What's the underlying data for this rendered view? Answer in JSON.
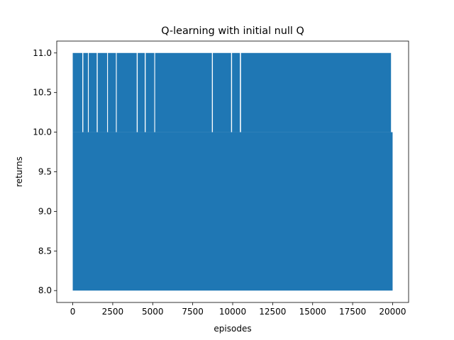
{
  "chart_data": {
    "type": "line",
    "title": "Q-learning with initial null Q",
    "xlabel": "episodes",
    "ylabel": "returns",
    "xlim": [
      -1000,
      21000
    ],
    "ylim": [
      7.85,
      11.15
    ],
    "x_ticks": [
      0,
      2500,
      5000,
      7500,
      10000,
      12500,
      15000,
      17500,
      20000
    ],
    "x_tick_labels": [
      "0",
      "2500",
      "5000",
      "7500",
      "10000",
      "12500",
      "15000",
      "17500",
      "20000"
    ],
    "y_ticks": [
      8.0,
      8.5,
      9.0,
      9.5,
      10.0,
      10.5,
      11.0
    ],
    "y_tick_labels": [
      "8.0",
      "8.5",
      "9.0",
      "9.5",
      "10.0",
      "10.5",
      "11.0"
    ],
    "grid": false,
    "legend": "none",
    "series": [
      {
        "color": "#1f77b4",
        "description": "Returns per episode oscillating densely between 8 and 10, with frequent spikes to 11",
        "x_range": [
          0,
          20000
        ],
        "y_min": 8.0,
        "y_max": 11.0,
        "dense_band": [
          8.0,
          10.0
        ],
        "spike_band": [
          10.0,
          11.0
        ],
        "spike_gaps_x": [
          [
            600,
            660
          ],
          [
            950,
            1000
          ],
          [
            1500,
            1560
          ],
          [
            2150,
            2200
          ],
          [
            2700,
            2750
          ],
          [
            4000,
            4060
          ],
          [
            4500,
            4560
          ],
          [
            5100,
            5150
          ],
          [
            8700,
            8760
          ],
          [
            9900,
            9960
          ],
          [
            10450,
            10520
          ],
          [
            19900,
            20000
          ]
        ]
      }
    ]
  }
}
